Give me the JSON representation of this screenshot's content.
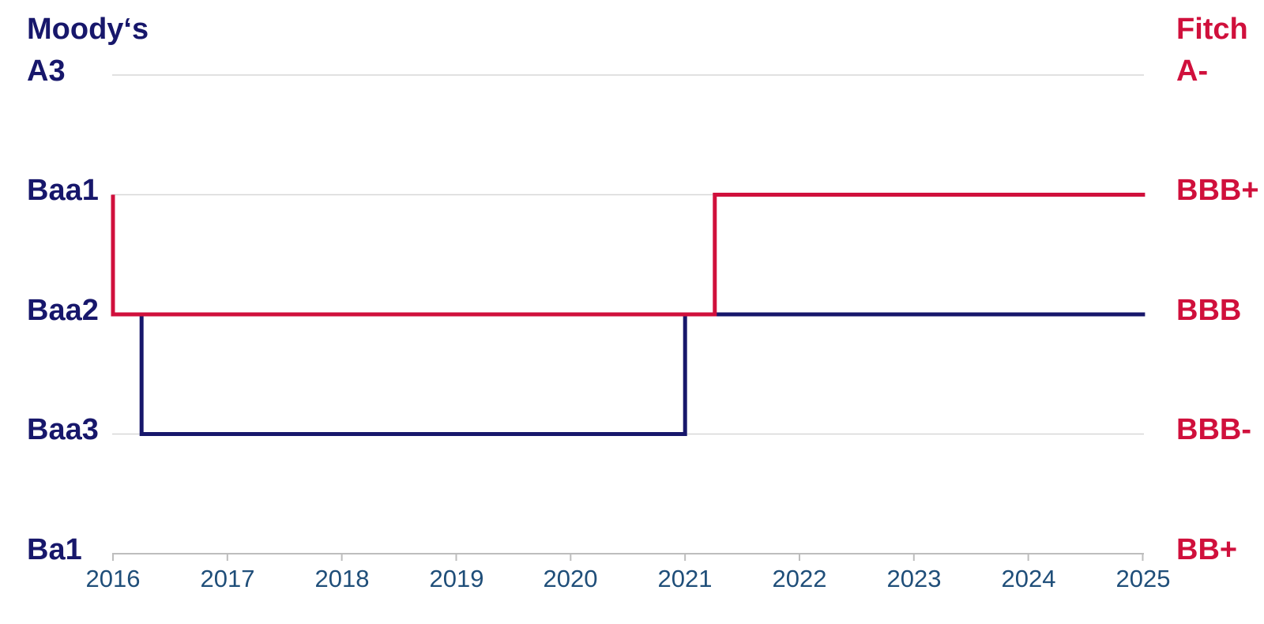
{
  "colors": {
    "navy": "#17176B",
    "red": "#D0103C",
    "gridline": "#D7D7D7",
    "axis": "#BDBDBD",
    "year_label": "#1F4E79",
    "background": "#FFFFFF"
  },
  "left_axis": {
    "title": "Moody‘s",
    "labels": [
      "A3",
      "Baa1",
      "Baa2",
      "Baa3",
      "Ba1"
    ]
  },
  "right_axis": {
    "title": "Fitch",
    "labels": [
      "A-",
      "BBB+",
      "BBB",
      "BBB-",
      "BB+"
    ]
  },
  "x_axis": {
    "ticks": [
      "2016",
      "2017",
      "2018",
      "2019",
      "2020",
      "2021",
      "2022",
      "2023",
      "2024",
      "2025"
    ]
  },
  "chart_data": {
    "type": "line",
    "subtype": "step",
    "title": "",
    "xlabel": "",
    "ylabel_left": "Moody‘s",
    "ylabel_right": "Fitch",
    "x_range": [
      2016,
      2025
    ],
    "grid": "horizontal",
    "legend_position": "none",
    "left_scale_top_to_bottom": [
      "A3",
      "Baa1",
      "Baa2",
      "Baa3",
      "Ba1"
    ],
    "right_scale_top_to_bottom": [
      "A-",
      "BBB+",
      "BBB",
      "BBB-",
      "BB+"
    ],
    "series": [
      {
        "name": "Moody's rating",
        "axis": "left",
        "color_key": "navy",
        "vertices": [
          [
            2016.0,
            "Baa2"
          ],
          [
            2016.25,
            "Baa2"
          ],
          [
            2016.25,
            "Baa3"
          ],
          [
            2021.0,
            "Baa3"
          ],
          [
            2021.0,
            "Baa2"
          ],
          [
            2025.02,
            "Baa2"
          ]
        ]
      },
      {
        "name": "Fitch rating",
        "axis": "right",
        "color_key": "red",
        "vertices": [
          [
            2016.0,
            "BBB+"
          ],
          [
            2016.0,
            "BBB"
          ],
          [
            2021.26,
            "BBB"
          ],
          [
            2021.26,
            "BBB+"
          ],
          [
            2025.02,
            "BBB+"
          ]
        ]
      }
    ]
  }
}
